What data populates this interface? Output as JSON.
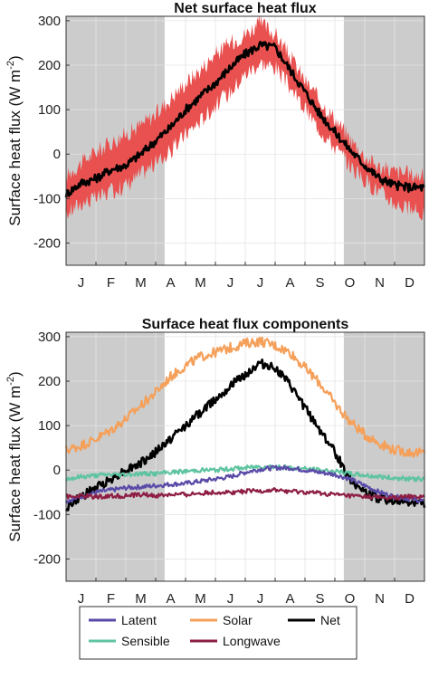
{
  "chart_data": [
    {
      "type": "line",
      "title": "Net surface heat flux",
      "ylabel": "Surface heat flux (W m",
      "ylabel_sup": "-2",
      "ylabel_close": ")",
      "ylim": [
        -250,
        310
      ],
      "yticks": [
        -200,
        -100,
        0,
        100,
        200,
        300
      ],
      "xlim": [
        0,
        12
      ],
      "months": [
        "J",
        "F",
        "M",
        "A",
        "M",
        "J",
        "J",
        "A",
        "S",
        "O",
        "N",
        "D"
      ],
      "grid": true,
      "shaded_periods": [
        [
          0,
          3.3
        ],
        [
          9.3,
          12
        ]
      ],
      "colors": {
        "band": "#e8514f",
        "net": "#000000",
        "shade": "#cccccc"
      },
      "series": [
        {
          "style": "band",
          "x": [
            0,
            0.5,
            1,
            1.5,
            2,
            2.5,
            3,
            3.5,
            4,
            4.5,
            5,
            5.5,
            6,
            6.5,
            7,
            7.5,
            8,
            8.5,
            9,
            9.5,
            10,
            10.5,
            11,
            11.5,
            12
          ],
          "lower": [
            -135,
            -110,
            -100,
            -85,
            -70,
            -45,
            -20,
            5,
            45,
            75,
            110,
            140,
            180,
            205,
            195,
            150,
            100,
            55,
            15,
            -25,
            -60,
            -85,
            -110,
            -125,
            -135
          ],
          "upper": [
            -50,
            -20,
            5,
            25,
            45,
            65,
            90,
            125,
            160,
            190,
            225,
            250,
            270,
            295,
            270,
            220,
            165,
            120,
            80,
            35,
            -5,
            -30,
            -40,
            -45,
            -50
          ]
        },
        {
          "name": "Net",
          "x": [
            0,
            0.5,
            1,
            1.5,
            2,
            2.5,
            3,
            3.5,
            4,
            4.5,
            5,
            5.5,
            6,
            6.5,
            7,
            7.5,
            8,
            8.5,
            9,
            9.5,
            10,
            10.5,
            11,
            11.5,
            12
          ],
          "values": [
            -90,
            -65,
            -55,
            -35,
            -25,
            0,
            30,
            60,
            100,
            130,
            160,
            195,
            225,
            245,
            240,
            190,
            140,
            90,
            50,
            10,
            -25,
            -55,
            -70,
            -75,
            -75
          ]
        }
      ]
    },
    {
      "type": "line",
      "title": "Surface heat flux components",
      "ylabel": "Surface heat flux (W m",
      "ylabel_sup": "-2",
      "ylabel_close": ")",
      "ylim": [
        -250,
        310
      ],
      "yticks": [
        -200,
        -100,
        0,
        100,
        200,
        300
      ],
      "xlim": [
        0,
        12
      ],
      "months": [
        "J",
        "F",
        "M",
        "A",
        "M",
        "J",
        "J",
        "A",
        "S",
        "O",
        "N",
        "D"
      ],
      "grid": true,
      "shaded_periods": [
        [
          0,
          3.3
        ],
        [
          9.3,
          12
        ]
      ],
      "legend_position": "bottom",
      "series": [
        {
          "name": "Solar",
          "color": "#f5a05a",
          "x": [
            0,
            0.5,
            1,
            1.5,
            2,
            2.5,
            3,
            3.5,
            4,
            4.5,
            5,
            5.5,
            6,
            6.5,
            7,
            7.5,
            8,
            8.5,
            9,
            9.5,
            10,
            10.5,
            11,
            11.5,
            12
          ],
          "values": [
            45,
            55,
            70,
            90,
            115,
            145,
            175,
            210,
            235,
            255,
            265,
            275,
            285,
            290,
            280,
            265,
            230,
            195,
            150,
            110,
            80,
            60,
            45,
            40,
            38
          ]
        },
        {
          "name": "Net",
          "color": "#000000",
          "x": [
            0,
            0.5,
            1,
            1.5,
            2,
            2.5,
            3,
            3.5,
            4,
            4.5,
            5,
            5.5,
            6,
            6.5,
            7,
            7.5,
            8,
            8.5,
            9,
            9.5,
            10,
            10.5,
            11,
            11.5,
            12
          ],
          "values": [
            -85,
            -60,
            -40,
            -20,
            0,
            15,
            40,
            70,
            100,
            130,
            160,
            190,
            215,
            240,
            230,
            190,
            140,
            90,
            40,
            -20,
            -50,
            -65,
            -70,
            -72,
            -75
          ]
        },
        {
          "name": "Sensible",
          "color": "#5ec4a0",
          "x": [
            0,
            0.5,
            1,
            1.5,
            2,
            2.5,
            3,
            3.5,
            4,
            4.5,
            5,
            5.5,
            6,
            6.5,
            7,
            7.5,
            8,
            8.5,
            9,
            9.5,
            10,
            10.5,
            11,
            11.5,
            12
          ],
          "values": [
            -20,
            -15,
            -12,
            -10,
            -10,
            -8,
            -8,
            -5,
            -3,
            0,
            0,
            3,
            5,
            8,
            8,
            5,
            3,
            0,
            -3,
            -8,
            -12,
            -15,
            -18,
            -20,
            -20
          ]
        },
        {
          "name": "Latent",
          "color": "#5a4aa8",
          "x": [
            0,
            0.5,
            1,
            1.5,
            2,
            2.5,
            3,
            3.5,
            4,
            4.5,
            5,
            5.5,
            6,
            6.5,
            7,
            7.5,
            8,
            8.5,
            9,
            9.5,
            10,
            10.5,
            11,
            11.5,
            12
          ],
          "values": [
            -70,
            -60,
            -50,
            -45,
            -40,
            -38,
            -35,
            -32,
            -30,
            -25,
            -20,
            -15,
            -5,
            2,
            5,
            5,
            0,
            -5,
            -10,
            -20,
            -35,
            -50,
            -60,
            -65,
            -70
          ]
        },
        {
          "name": "Longwave",
          "color": "#8e1e45",
          "x": [
            0,
            0.5,
            1,
            1.5,
            2,
            2.5,
            3,
            3.5,
            4,
            4.5,
            5,
            5.5,
            6,
            6.5,
            7,
            7.5,
            8,
            8.5,
            9,
            9.5,
            10,
            10.5,
            11,
            11.5,
            12
          ],
          "values": [
            -60,
            -58,
            -60,
            -58,
            -58,
            -55,
            -58,
            -55,
            -55,
            -52,
            -50,
            -50,
            -48,
            -47,
            -45,
            -48,
            -50,
            -52,
            -55,
            -58,
            -60,
            -62,
            -62,
            -60,
            -60
          ]
        }
      ]
    }
  ],
  "legend": {
    "items": [
      {
        "label": "Latent",
        "color": "#5a4aa8"
      },
      {
        "label": "Solar",
        "color": "#f5a05a"
      },
      {
        "label": "Net",
        "color": "#000000"
      },
      {
        "label": "Sensible",
        "color": "#5ec4a0"
      },
      {
        "label": "Longwave",
        "color": "#8e1e45"
      }
    ]
  }
}
